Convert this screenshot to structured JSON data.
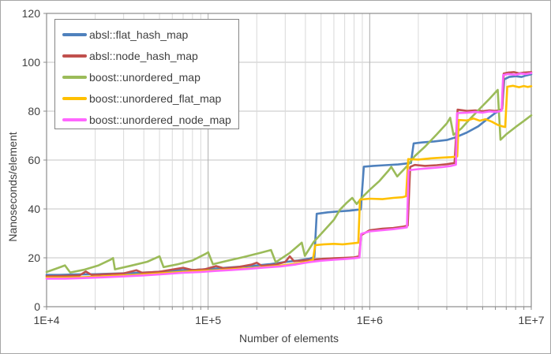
{
  "chart_data": {
    "type": "line",
    "title": "",
    "xlabel": "Number of elements",
    "ylabel": "Nanoseconds/element",
    "x_scale": "log",
    "x_range": [
      10000,
      10000000
    ],
    "y_range": [
      0,
      120
    ],
    "y_ticks": [
      0,
      20,
      40,
      60,
      80,
      100,
      120
    ],
    "x_ticks": [
      {
        "value": 10000,
        "label": "1E+4"
      },
      {
        "value": 100000,
        "label": "1E+5"
      },
      {
        "value": 1000000,
        "label": "1E+6"
      },
      {
        "value": 10000000,
        "label": "1E+7"
      }
    ],
    "grid": true,
    "legend_position": "top-left",
    "series": [
      {
        "name": "absl::flat_hash_map",
        "color": "#4F81BD",
        "points": [
          [
            10000,
            13.0
          ],
          [
            12000,
            13.0
          ],
          [
            15000,
            13.2
          ],
          [
            20000,
            13.3
          ],
          [
            26000,
            13.5
          ],
          [
            35000,
            13.8
          ],
          [
            45000,
            14.1
          ],
          [
            60000,
            14.7
          ],
          [
            70000,
            15.0
          ],
          [
            85000,
            15.1
          ],
          [
            100000,
            15.4
          ],
          [
            120000,
            15.8
          ],
          [
            150000,
            16.3
          ],
          [
            190000,
            16.7
          ],
          [
            240000,
            17.4
          ],
          [
            300000,
            18.3
          ],
          [
            360000,
            18.9
          ],
          [
            420000,
            19.6
          ],
          [
            455000,
            20.3
          ],
          [
            470000,
            38.0
          ],
          [
            550000,
            38.6
          ],
          [
            650000,
            39.0
          ],
          [
            750000,
            39.3
          ],
          [
            880000,
            39.8
          ],
          [
            920000,
            57.3
          ],
          [
            1050000,
            57.6
          ],
          [
            1250000,
            57.9
          ],
          [
            1500000,
            58.2
          ],
          [
            1800000,
            58.8
          ],
          [
            1870000,
            66.8
          ],
          [
            2100000,
            67.2
          ],
          [
            2500000,
            67.6
          ],
          [
            3000000,
            68.2
          ],
          [
            3400000,
            69.3
          ],
          [
            4000000,
            71.3
          ],
          [
            4700000,
            73.8
          ],
          [
            5400000,
            77.0
          ],
          [
            6000000,
            79.3
          ],
          [
            6400000,
            80.2
          ],
          [
            6600000,
            81.0
          ],
          [
            6800000,
            93.0
          ],
          [
            7300000,
            94.0
          ],
          [
            8000000,
            94.3
          ],
          [
            8700000,
            94.0
          ],
          [
            9300000,
            94.6
          ],
          [
            10000000,
            95.1
          ]
        ]
      },
      {
        "name": "absl::node_hash_map",
        "color": "#C0504D",
        "points": [
          [
            10000,
            12.5
          ],
          [
            13000,
            12.6
          ],
          [
            16000,
            12.8
          ],
          [
            17500,
            14.4
          ],
          [
            19000,
            13.0
          ],
          [
            24000,
            13.3
          ],
          [
            30000,
            13.6
          ],
          [
            36000,
            14.9
          ],
          [
            39000,
            13.9
          ],
          [
            50000,
            14.3
          ],
          [
            60000,
            15.2
          ],
          [
            70000,
            15.9
          ],
          [
            80000,
            15.0
          ],
          [
            95000,
            15.3
          ],
          [
            112000,
            16.6
          ],
          [
            125000,
            15.7
          ],
          [
            155000,
            16.3
          ],
          [
            185000,
            17.2
          ],
          [
            200000,
            18.0
          ],
          [
            215000,
            16.7
          ],
          [
            260000,
            17.2
          ],
          [
            300000,
            18.3
          ],
          [
            320000,
            20.6
          ],
          [
            340000,
            18.6
          ],
          [
            400000,
            19.0
          ],
          [
            450000,
            19.3
          ],
          [
            520000,
            19.6
          ],
          [
            600000,
            19.8
          ],
          [
            700000,
            20.0
          ],
          [
            800000,
            20.2
          ],
          [
            860000,
            20.6
          ],
          [
            885000,
            29.3
          ],
          [
            1000000,
            31.3
          ],
          [
            1200000,
            31.9
          ],
          [
            1400000,
            32.2
          ],
          [
            1600000,
            32.7
          ],
          [
            1720000,
            33.2
          ],
          [
            1780000,
            57.2
          ],
          [
            1900000,
            58.0
          ],
          [
            2200000,
            57.6
          ],
          [
            2600000,
            57.9
          ],
          [
            3000000,
            58.3
          ],
          [
            3350000,
            58.8
          ],
          [
            3500000,
            80.6
          ],
          [
            4000000,
            80.1
          ],
          [
            4500000,
            80.3
          ],
          [
            5000000,
            80.0
          ],
          [
            5500000,
            80.3
          ],
          [
            6000000,
            80.1
          ],
          [
            6400000,
            80.4
          ],
          [
            6600000,
            81.0
          ],
          [
            6750000,
            95.4
          ],
          [
            7200000,
            95.8
          ],
          [
            7800000,
            96.0
          ],
          [
            8400000,
            95.5
          ],
          [
            9000000,
            95.8
          ],
          [
            10000000,
            96.0
          ]
        ]
      },
      {
        "name": "boost::unordered_map",
        "color": "#9BBB59",
        "points": [
          [
            10000,
            14.2
          ],
          [
            11500,
            15.6
          ],
          [
            13000,
            16.9
          ],
          [
            14000,
            14.0
          ],
          [
            17000,
            15.1
          ],
          [
            21000,
            16.9
          ],
          [
            25000,
            19.3
          ],
          [
            25800,
            19.9
          ],
          [
            26500,
            15.3
          ],
          [
            33000,
            16.7
          ],
          [
            42000,
            18.4
          ],
          [
            50000,
            20.6
          ],
          [
            53000,
            16.2
          ],
          [
            65000,
            17.4
          ],
          [
            80000,
            18.9
          ],
          [
            97000,
            21.7
          ],
          [
            100000,
            22.3
          ],
          [
            107000,
            17.4
          ],
          [
            130000,
            18.7
          ],
          [
            165000,
            20.3
          ],
          [
            210000,
            22.0
          ],
          [
            245000,
            23.2
          ],
          [
            262000,
            18.2
          ],
          [
            320000,
            22.0
          ],
          [
            380000,
            26.2
          ],
          [
            397000,
            20.8
          ],
          [
            450000,
            26.5
          ],
          [
            520000,
            31.0
          ],
          [
            600000,
            35.5
          ],
          [
            655000,
            39.7
          ],
          [
            720000,
            42.5
          ],
          [
            780000,
            44.5
          ],
          [
            830000,
            42.0
          ],
          [
            900000,
            44.8
          ],
          [
            1000000,
            47.8
          ],
          [
            1150000,
            51.5
          ],
          [
            1300000,
            55.5
          ],
          [
            1360000,
            57.2
          ],
          [
            1480000,
            53.3
          ],
          [
            1700000,
            57.5
          ],
          [
            1900000,
            61.6
          ],
          [
            2200000,
            65.5
          ],
          [
            2600000,
            70.5
          ],
          [
            3000000,
            75.0
          ],
          [
            3150000,
            77.3
          ],
          [
            3300000,
            70.3
          ],
          [
            3700000,
            73.0
          ],
          [
            4200000,
            77.0
          ],
          [
            4800000,
            81.0
          ],
          [
            5500000,
            85.0
          ],
          [
            6200000,
            88.7
          ],
          [
            6450000,
            68.3
          ],
          [
            7000000,
            70.5
          ],
          [
            8000000,
            73.5
          ],
          [
            9000000,
            76.0
          ],
          [
            10000000,
            78.3
          ]
        ]
      },
      {
        "name": "boost::unordered_flat_map",
        "color": "#FFC000",
        "points": [
          [
            10000,
            11.9
          ],
          [
            13000,
            11.9
          ],
          [
            17000,
            12.1
          ],
          [
            22000,
            12.4
          ],
          [
            30000,
            12.8
          ],
          [
            40000,
            13.2
          ],
          [
            55000,
            13.8
          ],
          [
            70000,
            14.3
          ],
          [
            90000,
            14.6
          ],
          [
            110000,
            14.9
          ],
          [
            140000,
            15.3
          ],
          [
            180000,
            15.8
          ],
          [
            220000,
            16.2
          ],
          [
            280000,
            16.8
          ],
          [
            350000,
            17.6
          ],
          [
            420000,
            18.5
          ],
          [
            445000,
            19.2
          ],
          [
            460000,
            25.2
          ],
          [
            520000,
            25.5
          ],
          [
            600000,
            25.7
          ],
          [
            680000,
            25.5
          ],
          [
            780000,
            25.9
          ],
          [
            850000,
            26.2
          ],
          [
            870000,
            43.8
          ],
          [
            1000000,
            44.2
          ],
          [
            1200000,
            44.0
          ],
          [
            1400000,
            44.5
          ],
          [
            1600000,
            44.8
          ],
          [
            1680000,
            45.2
          ],
          [
            1730000,
            60.4
          ],
          [
            2000000,
            60.2
          ],
          [
            2400000,
            60.7
          ],
          [
            2800000,
            61.0
          ],
          [
            3200000,
            61.2
          ],
          [
            3480000,
            61.5
          ],
          [
            3560000,
            76.4
          ],
          [
            4000000,
            76.2
          ],
          [
            4400000,
            77.0
          ],
          [
            4800000,
            76.1
          ],
          [
            5200000,
            76.7
          ],
          [
            5700000,
            75.7
          ],
          [
            6200000,
            74.4
          ],
          [
            6600000,
            73.8
          ],
          [
            6900000,
            73.5
          ],
          [
            7100000,
            90.0
          ],
          [
            7700000,
            90.4
          ],
          [
            8400000,
            89.8
          ],
          [
            9000000,
            90.3
          ],
          [
            9500000,
            89.9
          ],
          [
            10000000,
            90.2
          ]
        ]
      },
      {
        "name": "boost::unordered_node_map",
        "color": "#FF66FF",
        "points": [
          [
            10000,
            11.5
          ],
          [
            13000,
            11.5
          ],
          [
            17000,
            11.7
          ],
          [
            22000,
            12.0
          ],
          [
            30000,
            12.4
          ],
          [
            40000,
            12.8
          ],
          [
            55000,
            13.4
          ],
          [
            70000,
            13.9
          ],
          [
            90000,
            14.2
          ],
          [
            110000,
            14.6
          ],
          [
            140000,
            15.0
          ],
          [
            180000,
            15.5
          ],
          [
            220000,
            16.0
          ],
          [
            280000,
            16.5
          ],
          [
            350000,
            17.3
          ],
          [
            420000,
            18.2
          ],
          [
            500000,
            18.8
          ],
          [
            600000,
            19.2
          ],
          [
            700000,
            19.5
          ],
          [
            800000,
            19.8
          ],
          [
            865000,
            20.1
          ],
          [
            885000,
            29.8
          ],
          [
            1000000,
            30.8
          ],
          [
            1200000,
            31.3
          ],
          [
            1400000,
            31.7
          ],
          [
            1600000,
            32.2
          ],
          [
            1700000,
            32.5
          ],
          [
            1740000,
            55.8
          ],
          [
            2000000,
            56.3
          ],
          [
            2400000,
            56.7
          ],
          [
            2800000,
            57.1
          ],
          [
            3200000,
            57.6
          ],
          [
            3420000,
            58.1
          ],
          [
            3470000,
            79.2
          ],
          [
            4000000,
            79.4
          ],
          [
            4500000,
            79.7
          ],
          [
            5000000,
            79.4
          ],
          [
            5500000,
            79.9
          ],
          [
            6000000,
            79.7
          ],
          [
            6350000,
            79.9
          ],
          [
            6550000,
            80.2
          ],
          [
            6700000,
            94.8
          ],
          [
            7200000,
            95.2
          ],
          [
            8000000,
            94.9
          ],
          [
            8600000,
            95.4
          ],
          [
            9300000,
            95.2
          ],
          [
            10000000,
            95.6
          ]
        ]
      }
    ],
    "style": {
      "plot_border_color": "#8C8C8C",
      "h_gridline_color": "#C6C6C6",
      "v_minor_gridline_color": "#D9D9D9",
      "v_major_gridline_color": "#ADADAD",
      "tick_color": "#8C8C8C",
      "text_color": "#3F3F3F",
      "line_width": 2.6
    }
  }
}
